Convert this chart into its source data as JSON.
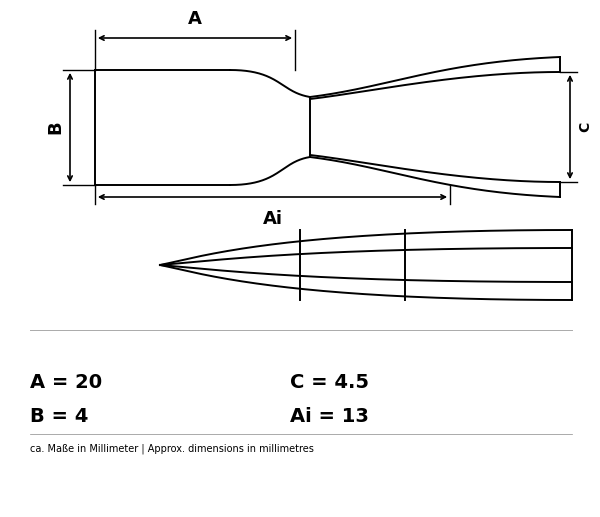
{
  "bg_color": "#ffffff",
  "line_color": "#000000",
  "fig_width": 6.0,
  "fig_height": 5.17,
  "dpi": 100,
  "dim_A": "A = 20",
  "dim_B": "B = 4",
  "dim_C": "C = 4.5",
  "dim_Ai": "Ai = 13",
  "footer": "ca. Maße in Millimeter | Approx. dimensions in millimetres",
  "label_A": "A",
  "label_B": "B",
  "label_C": "C",
  "label_Ai": "Ai"
}
